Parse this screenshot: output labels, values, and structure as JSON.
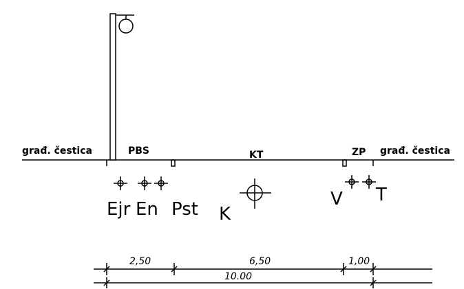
{
  "labels": {
    "left_parcel": "građ. čestica",
    "right_parcel": "građ. čestica",
    "pbs": "PBS",
    "kt": "KT",
    "zp": "ZP"
  },
  "utilities": {
    "ejr": "Ejr",
    "en": "En",
    "pst": "Pst",
    "k": "K",
    "v": "V",
    "t": "T"
  },
  "dimensions": {
    "seg1": "2,50",
    "seg2": "6,50",
    "seg3": "1,00",
    "total": "10.00"
  }
}
